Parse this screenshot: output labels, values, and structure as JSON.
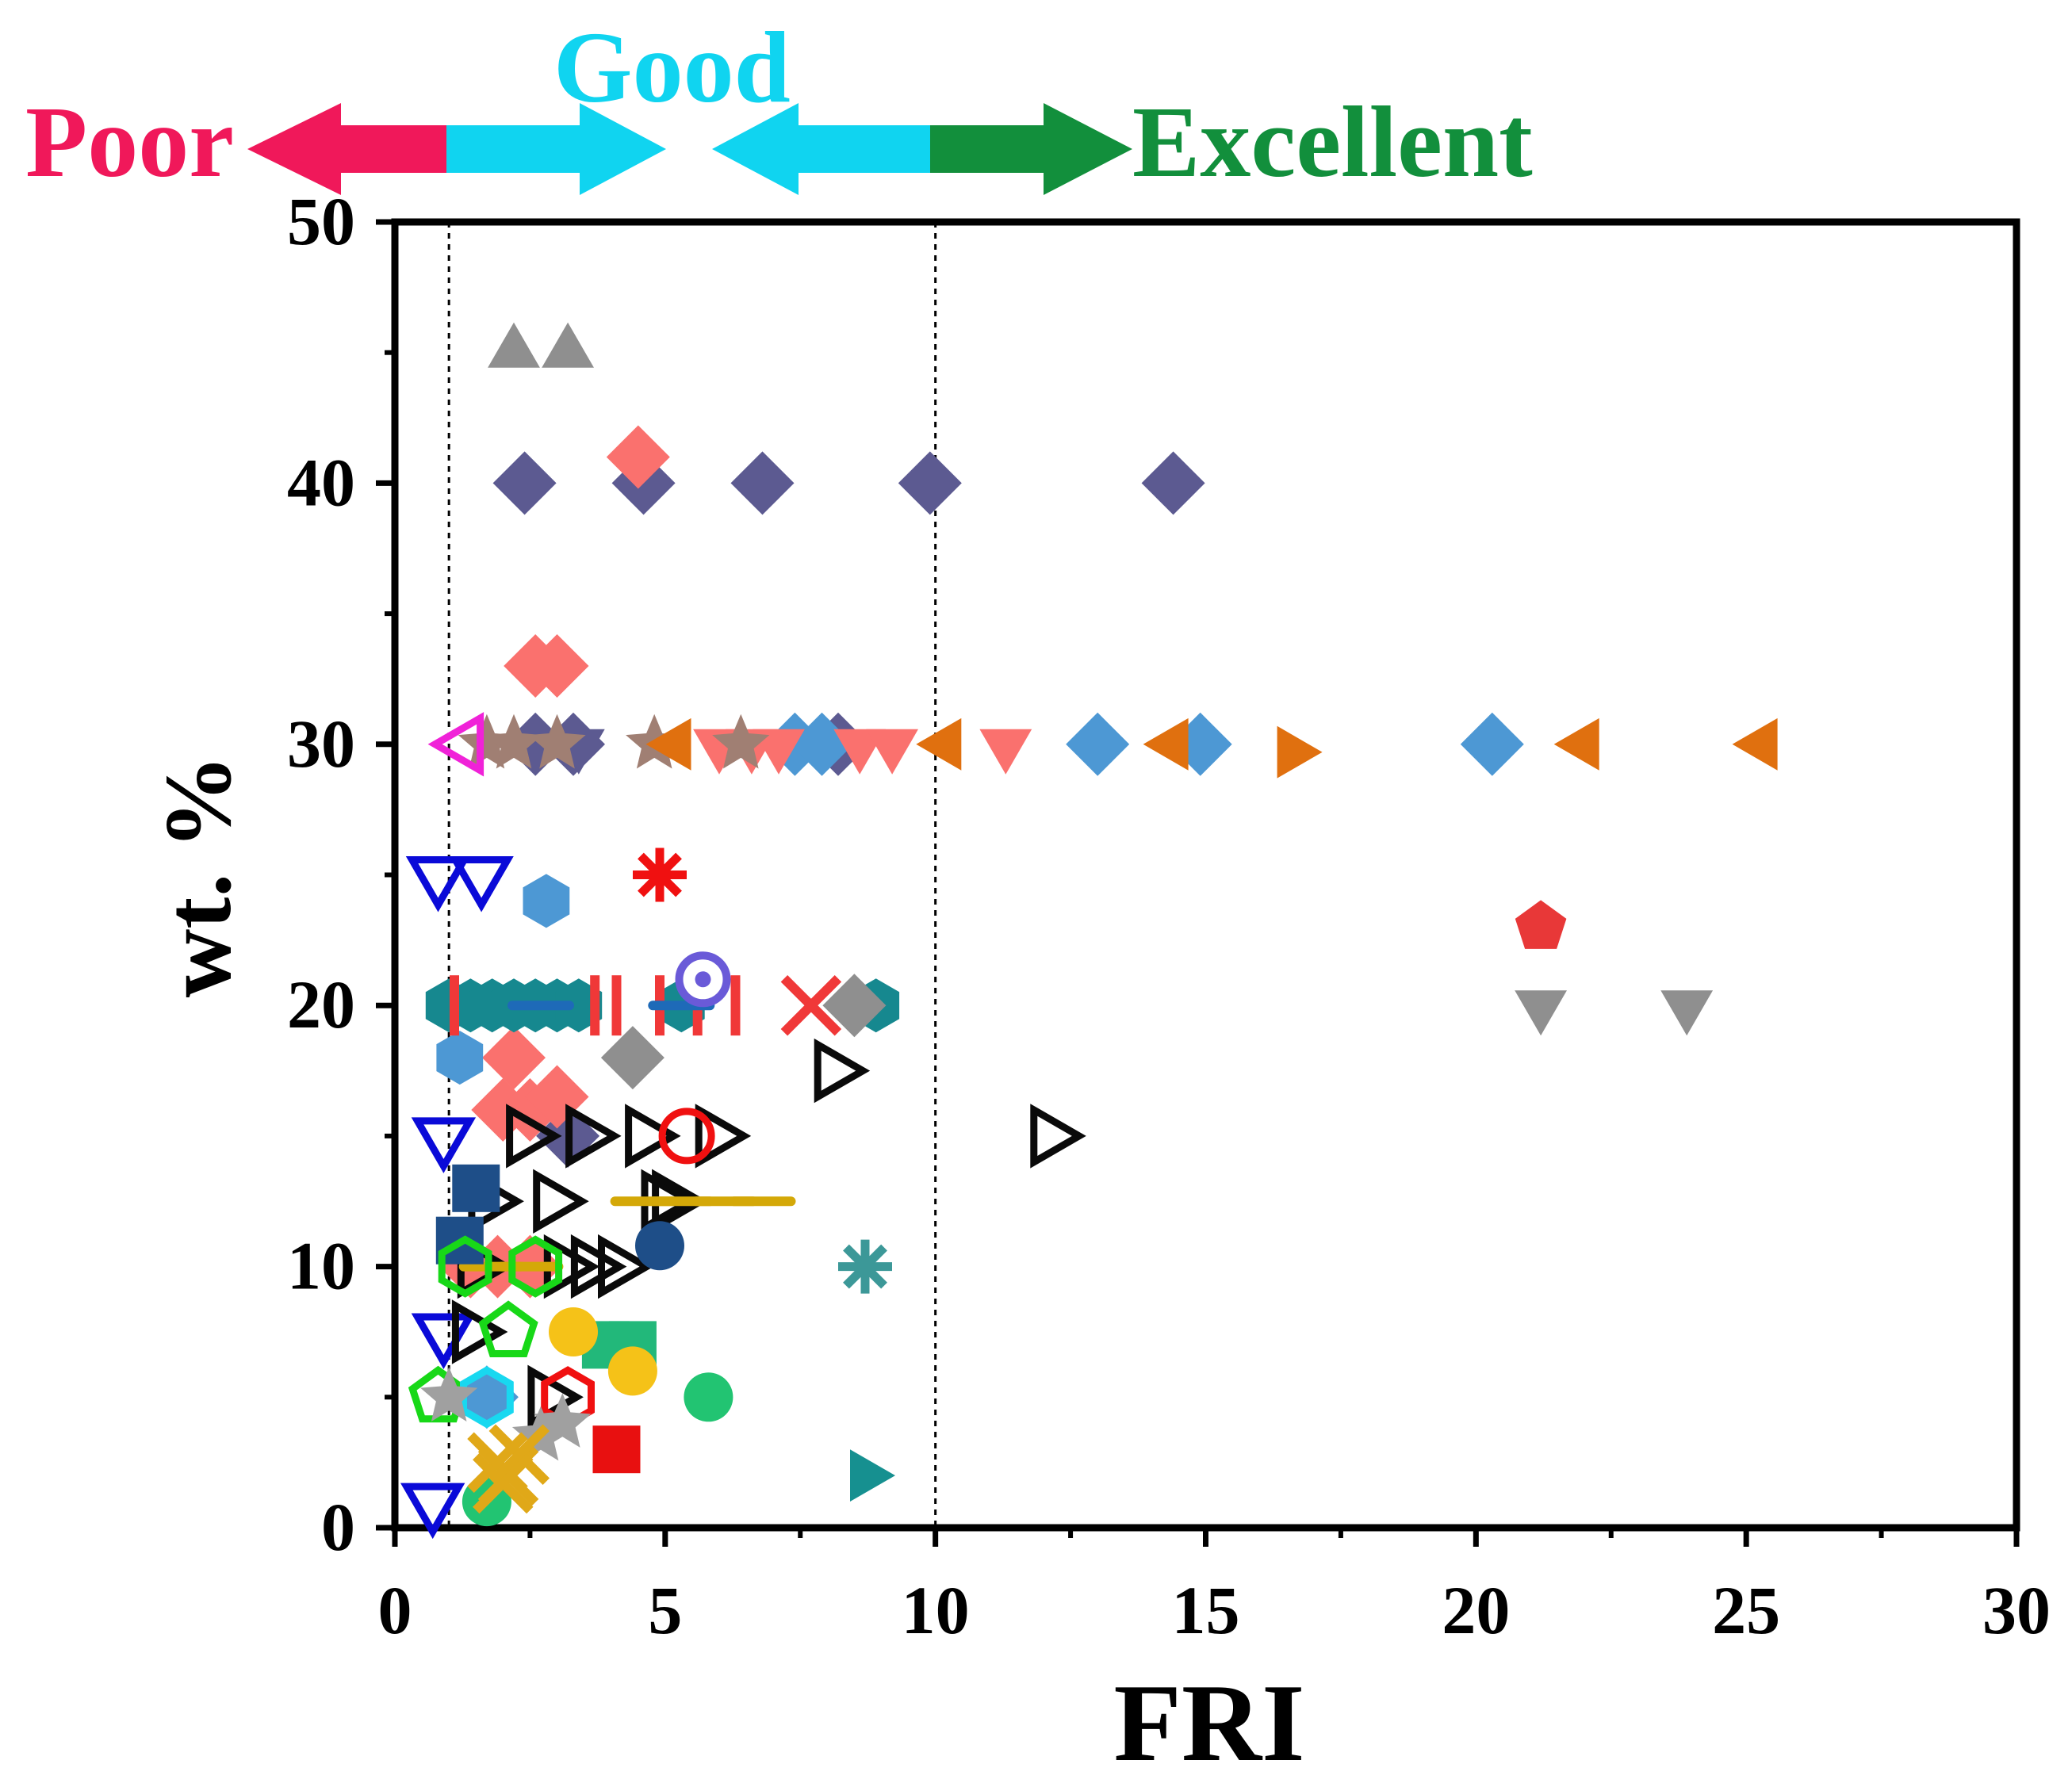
{
  "chart_data": {
    "type": "scatter",
    "title": "",
    "xlabel": "FRI",
    "ylabel": "wt. %",
    "xlim": [
      0,
      30
    ],
    "ylim": [
      0,
      50
    ],
    "x_ticks": [
      0,
      5,
      10,
      15,
      20,
      25,
      30
    ],
    "y_ticks": [
      0,
      10,
      20,
      30,
      40,
      50
    ],
    "reference_lines_x": [
      1,
      10
    ],
    "grid": false,
    "legend": "none",
    "classification": {
      "poor": {
        "label": "Poor",
        "color": "#f0185a"
      },
      "good": {
        "label": "Good",
        "color": "#10d4f0"
      },
      "excellent": {
        "label": "Excellent",
        "color": "#128f3c"
      },
      "arrow_colors": {
        "poor": "#f0185a",
        "good": "#10d4f0",
        "excellent": "#128f3c"
      }
    },
    "series": [
      {
        "name": "gray triangle",
        "marker": "triangle-up",
        "color": "#8f8f8f",
        "filled": true,
        "points": [
          [
            2.2,
            45
          ],
          [
            3.2,
            45
          ]
        ]
      },
      {
        "name": "slate diamond",
        "marker": "diamond",
        "color": "#5c5a91",
        "filled": true,
        "points": [
          [
            2.4,
            40
          ],
          [
            4.6,
            40
          ],
          [
            6.8,
            40
          ],
          [
            9.9,
            40
          ],
          [
            14.4,
            40
          ],
          [
            2.6,
            30
          ],
          [
            3.3,
            30
          ],
          [
            8.2,
            30
          ],
          [
            3.2,
            15
          ]
        ]
      },
      {
        "name": "salmon diamond",
        "marker": "diamond",
        "color": "#fa716e",
        "filled": true,
        "points": [
          [
            4.5,
            41
          ],
          [
            2.6,
            33
          ],
          [
            3.0,
            33
          ],
          [
            2.2,
            18
          ],
          [
            2.0,
            16
          ],
          [
            2.5,
            16
          ],
          [
            3.0,
            16.5
          ],
          [
            1.4,
            10
          ],
          [
            1.9,
            10
          ],
          [
            2.5,
            10
          ]
        ]
      },
      {
        "name": "blue diamond",
        "marker": "diamond",
        "color": "#4d98d4",
        "filled": true,
        "points": [
          [
            7.4,
            30
          ],
          [
            7.9,
            30
          ],
          [
            13.0,
            30
          ],
          [
            14.9,
            30
          ],
          [
            20.3,
            30
          ],
          [
            1.7,
            5
          ]
        ]
      },
      {
        "name": "salmon triangle down",
        "marker": "triangle-down",
        "color": "#fa716e",
        "filled": true,
        "points": [
          [
            6.6,
            30
          ],
          [
            7.1,
            30
          ],
          [
            8.6,
            30
          ],
          [
            9.2,
            30
          ],
          [
            11.3,
            30
          ],
          [
            6.0,
            30
          ]
        ]
      },
      {
        "name": "slate triangle down",
        "marker": "triangle-down",
        "color": "#5c5a91",
        "filled": true,
        "points": [
          [
            2.6,
            30
          ],
          [
            3.4,
            30
          ]
        ]
      },
      {
        "name": "brown star",
        "marker": "star",
        "color": "#a07f73",
        "filled": true,
        "points": [
          [
            1.7,
            30
          ],
          [
            2.2,
            30
          ],
          [
            3.0,
            30
          ],
          [
            4.8,
            30
          ],
          [
            6.4,
            30
          ]
        ]
      },
      {
        "name": "orange triangle left",
        "marker": "triangle-left",
        "color": "#e0700f",
        "filled": true,
        "points": [
          [
            5.2,
            30
          ],
          [
            10.2,
            30
          ],
          [
            14.4,
            30
          ],
          [
            22.0,
            30
          ],
          [
            25.3,
            30
          ]
        ]
      },
      {
        "name": "orange triangle right",
        "marker": "triangle-right",
        "color": "#e0700f",
        "filled": true,
        "points": [
          [
            16.6,
            29.7
          ]
        ]
      },
      {
        "name": "magenta triangle left",
        "marker": "triangle-left",
        "color": "#f022d8",
        "filled": false,
        "points": [
          [
            1.3,
            30
          ]
        ]
      },
      {
        "name": "blue open triangle down",
        "marker": "triangle-down",
        "color": "#0a0ad8",
        "filled": false,
        "points": [
          [
            0.8,
            25
          ],
          [
            1.6,
            25
          ],
          [
            0.9,
            15
          ],
          [
            0.9,
            7.5
          ],
          [
            0.7,
            1
          ]
        ]
      },
      {
        "name": "blue hexagon",
        "marker": "hexagon",
        "color": "#4d98d4",
        "filled": true,
        "points": [
          [
            2.8,
            24
          ],
          [
            1.2,
            18
          ]
        ]
      },
      {
        "name": "red asterisk",
        "marker": "asterisk",
        "color": "#f01010",
        "filled": true,
        "points": [
          [
            4.9,
            25
          ]
        ]
      },
      {
        "name": "red pentagon",
        "marker": "pentagon",
        "color": "#e83838",
        "filled": true,
        "points": [
          [
            21.2,
            23
          ]
        ]
      },
      {
        "name": "gray triangle down",
        "marker": "triangle-down",
        "color": "#8f8f8f",
        "filled": true,
        "points": [
          [
            21.2,
            20
          ],
          [
            23.9,
            20
          ]
        ]
      },
      {
        "name": "teal hexagon",
        "marker": "hexagon",
        "color": "#16888f",
        "filled": true,
        "points": [
          [
            1.0,
            20
          ],
          [
            1.4,
            20
          ],
          [
            1.8,
            20
          ],
          [
            2.2,
            20
          ],
          [
            2.6,
            20
          ],
          [
            3.0,
            20
          ],
          [
            3.4,
            20
          ],
          [
            5.3,
            20
          ],
          [
            8.9,
            20
          ]
        ]
      },
      {
        "name": "red bar",
        "marker": "vbar",
        "color": "#f03838",
        "filled": true,
        "points": [
          [
            1.1,
            20
          ],
          [
            3.7,
            20
          ],
          [
            4.1,
            20
          ],
          [
            4.9,
            20
          ],
          [
            5.6,
            20
          ],
          [
            6.3,
            20
          ]
        ]
      },
      {
        "name": "blue dash",
        "marker": "hbar",
        "color": "#1e6ab8",
        "filled": true,
        "points": [
          [
            2.7,
            20
          ],
          [
            5.3,
            20
          ]
        ]
      },
      {
        "name": "red cross",
        "marker": "cross",
        "color": "#f03838",
        "filled": true,
        "points": [
          [
            7.7,
            20
          ]
        ]
      },
      {
        "name": "gray diamond",
        "marker": "diamond",
        "color": "#8f8f8f",
        "filled": true,
        "points": [
          [
            4.4,
            18
          ],
          [
            8.5,
            20
          ]
        ]
      },
      {
        "name": "purple ring",
        "marker": "ring",
        "color": "#6a5ad8",
        "filled": false,
        "points": [
          [
            5.7,
            21
          ]
        ]
      },
      {
        "name": "black open triangle right",
        "marker": "triangle-right",
        "color": "#0a0a0a",
        "filled": false,
        "points": [
          [
            8.1,
            17.5
          ],
          [
            2.4,
            15
          ],
          [
            3.5,
            15
          ],
          [
            4.6,
            15
          ],
          [
            5.9,
            15
          ],
          [
            12.1,
            15
          ],
          [
            1.7,
            12.5
          ],
          [
            2.9,
            12.5
          ],
          [
            4.9,
            12.5
          ],
          [
            5.1,
            12.5
          ],
          [
            1.5,
            10
          ],
          [
            3.1,
            10
          ],
          [
            3.6,
            10
          ],
          [
            4.1,
            10
          ],
          [
            1.4,
            7.5
          ],
          [
            2.8,
            5
          ]
        ]
      },
      {
        "name": "red open circle",
        "marker": "circle",
        "color": "#f01010",
        "filled": false,
        "points": [
          [
            5.4,
            15
          ]
        ]
      },
      {
        "name": "gold dash",
        "marker": "hbar",
        "color": "#d4a808",
        "filled": true,
        "points": [
          [
            4.6,
            12.5
          ],
          [
            5.3,
            12.5
          ],
          [
            6.1,
            12.5
          ],
          [
            6.8,
            12.5
          ],
          [
            1.8,
            10
          ],
          [
            2.5,
            10
          ]
        ]
      },
      {
        "name": "navy circle",
        "marker": "circle",
        "color": "#1e4e88",
        "filled": true,
        "points": [
          [
            4.9,
            10.8
          ]
        ]
      },
      {
        "name": "navy square",
        "marker": "square",
        "color": "#1e4e88",
        "filled": true,
        "points": [
          [
            1.5,
            13
          ],
          [
            1.2,
            11
          ]
        ]
      },
      {
        "name": "teal asterisk",
        "marker": "asterisk",
        "color": "#3c9898",
        "filled": true,
        "points": [
          [
            8.7,
            10
          ]
        ]
      },
      {
        "name": "green open hexagon",
        "marker": "hexagon",
        "color": "#18d818",
        "filled": false,
        "points": [
          [
            1.3,
            10
          ],
          [
            2.6,
            10
          ]
        ]
      },
      {
        "name": "green open pentagon",
        "marker": "pentagon",
        "color": "#18d818",
        "filled": false,
        "points": [
          [
            2.1,
            7.5
          ],
          [
            0.8,
            5
          ]
        ]
      },
      {
        "name": "green square",
        "marker": "square",
        "color": "#22b87a",
        "filled": true,
        "points": [
          [
            3.9,
            7
          ],
          [
            4.4,
            7
          ]
        ]
      },
      {
        "name": "yellow circle",
        "marker": "circle",
        "color": "#f5c218",
        "filled": true,
        "points": [
          [
            4.4,
            6
          ],
          [
            3.3,
            7.5
          ]
        ]
      },
      {
        "name": "green circle",
        "marker": "circle",
        "color": "#22c472",
        "filled": true,
        "points": [
          [
            5.8,
            5
          ],
          [
            1.7,
            1
          ]
        ]
      },
      {
        "name": "cyan open hexagon",
        "marker": "hexagon",
        "color": "#18d8f0",
        "filled": false,
        "points": [
          [
            1.7,
            5
          ]
        ]
      },
      {
        "name": "red open hexagon",
        "marker": "hexagon",
        "color": "#f01010",
        "filled": false,
        "points": [
          [
            3.2,
            5
          ]
        ]
      },
      {
        "name": "gray star",
        "marker": "star",
        "color": "#a0a0a0",
        "filled": true,
        "points": [
          [
            1.0,
            5
          ],
          [
            2.7,
            3.5
          ],
          [
            3.1,
            4
          ]
        ]
      },
      {
        "name": "gold cross",
        "marker": "cross",
        "color": "#e0a818",
        "filled": true,
        "points": [
          [
            1.9,
            2.5
          ],
          [
            2.1,
            2
          ],
          [
            2.3,
            2.8
          ],
          [
            2.0,
            1.7
          ]
        ]
      },
      {
        "name": "red square",
        "marker": "square",
        "color": "#e81010",
        "filled": true,
        "points": [
          [
            4.1,
            3
          ]
        ]
      },
      {
        "name": "teal triangle right",
        "marker": "triangle-right",
        "color": "#169090",
        "filled": true,
        "points": [
          [
            8.7,
            2
          ]
        ]
      }
    ]
  }
}
